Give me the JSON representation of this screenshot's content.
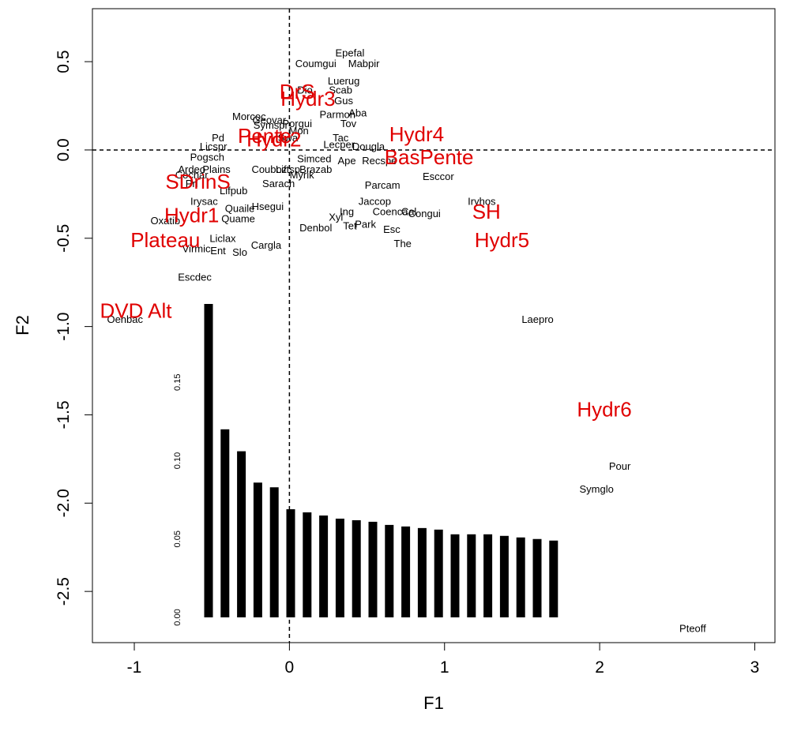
{
  "chart_data": [
    {
      "type": "scatter",
      "xlabel": "F1",
      "ylabel": "F2",
      "xlim": [
        -1.27,
        3.13
      ],
      "ylim": [
        -2.79,
        0.8
      ],
      "x_ticks": [
        -1,
        0,
        1,
        2,
        3
      ],
      "y_ticks": [
        0.5,
        0.0,
        -0.5,
        -1.0,
        -1.5,
        -2.0,
        -2.5
      ],
      "x_tick_labels": [
        "-1",
        "0",
        "1",
        "2",
        "3"
      ],
      "y_tick_labels": [
        "0.5",
        "0.0",
        "-0.5",
        "-1.0",
        "-1.5",
        "-2.0",
        "-2.5"
      ],
      "reference_lines": {
        "x": 0,
        "y": 0,
        "style": "dashed"
      },
      "species": [
        {
          "label": "Epefal",
          "x": 0.39,
          "y": 0.55
        },
        {
          "label": "Coumgui",
          "x": 0.17,
          "y": 0.49
        },
        {
          "label": "Mabpir",
          "x": 0.48,
          "y": 0.49
        },
        {
          "label": "Luerug",
          "x": 0.35,
          "y": 0.39
        },
        {
          "label": "Dio",
          "x": 0.1,
          "y": 0.34
        },
        {
          "label": "Scab",
          "x": 0.33,
          "y": 0.34
        },
        {
          "label": "Gus",
          "x": 0.35,
          "y": 0.28
        },
        {
          "label": "Aba",
          "x": 0.44,
          "y": 0.21
        },
        {
          "label": "Parmon",
          "x": 0.31,
          "y": 0.2
        },
        {
          "label": "Tov",
          "x": 0.38,
          "y": 0.15
        },
        {
          "label": "Morcoc",
          "x": -0.26,
          "y": 0.19
        },
        {
          "label": "Geovar",
          "x": -0.13,
          "y": 0.17
        },
        {
          "label": "Porgui",
          "x": 0.05,
          "y": 0.15
        },
        {
          "label": "Symspr",
          "x": -0.12,
          "y": 0.14
        },
        {
          "label": "Mon",
          "x": 0.06,
          "y": 0.11
        },
        {
          "label": "Swa",
          "x": -0.01,
          "y": 0.07
        },
        {
          "label": "Tac",
          "x": 0.33,
          "y": 0.07
        },
        {
          "label": "Lecper",
          "x": 0.32,
          "y": 0.03
        },
        {
          "label": "Dougla",
          "x": 0.51,
          "y": 0.02
        },
        {
          "label": "Pd",
          "x": -0.46,
          "y": 0.07
        },
        {
          "label": "Licspr",
          "x": -0.49,
          "y": 0.02
        },
        {
          "label": "Pogsch",
          "x": -0.53,
          "y": -0.04
        },
        {
          "label": "Simced",
          "x": 0.16,
          "y": -0.05
        },
        {
          "label": "Ape",
          "x": 0.37,
          "y": -0.06
        },
        {
          "label": "Recspe",
          "x": 0.58,
          "y": -0.06
        },
        {
          "label": "Ardeo",
          "x": -0.63,
          "y": -0.11
        },
        {
          "label": "Plains",
          "x": -0.47,
          "y": -0.11
        },
        {
          "label": "Couboz",
          "x": -0.13,
          "y": -0.11
        },
        {
          "label": "Liftsp",
          "x": -0.01,
          "y": -0.11
        },
        {
          "label": "Brazab",
          "x": 0.17,
          "y": -0.11
        },
        {
          "label": "Myrik",
          "x": 0.08,
          "y": -0.14
        },
        {
          "label": "Esccor",
          "x": 0.96,
          "y": -0.15
        },
        {
          "label": "Cochar",
          "x": -0.63,
          "y": -0.14
        },
        {
          "label": "Pri",
          "x": -0.63,
          "y": -0.19
        },
        {
          "label": "Sarach",
          "x": -0.07,
          "y": -0.19
        },
        {
          "label": "Parcam",
          "x": 0.6,
          "y": -0.2
        },
        {
          "label": "Lifpub",
          "x": -0.36,
          "y": -0.23
        },
        {
          "label": "Irysac",
          "x": -0.55,
          "y": -0.29
        },
        {
          "label": "Hsegui",
          "x": -0.14,
          "y": -0.32
        },
        {
          "label": "Quaile",
          "x": -0.32,
          "y": -0.33
        },
        {
          "label": "Jaccop",
          "x": 0.55,
          "y": -0.29
        },
        {
          "label": "Iryhos",
          "x": 1.24,
          "y": -0.29
        },
        {
          "label": "Ing",
          "x": 0.37,
          "y": -0.35
        },
        {
          "label": "Coenca",
          "x": 0.65,
          "y": -0.35
        },
        {
          "label": "Cal",
          "x": 0.77,
          "y": -0.35
        },
        {
          "label": "Congui",
          "x": 0.87,
          "y": -0.36
        },
        {
          "label": "Xyl",
          "x": 0.3,
          "y": -0.38
        },
        {
          "label": "Oxatib",
          "x": -0.8,
          "y": -0.4
        },
        {
          "label": "Quame",
          "x": -0.33,
          "y": -0.39
        },
        {
          "label": "Tet",
          "x": 0.39,
          "y": -0.43
        },
        {
          "label": "Park",
          "x": 0.49,
          "y": -0.42
        },
        {
          "label": "Denbol",
          "x": 0.17,
          "y": -0.44
        },
        {
          "label": "Esc",
          "x": 0.66,
          "y": -0.45
        },
        {
          "label": "Liclax",
          "x": -0.43,
          "y": -0.5
        },
        {
          "label": "The",
          "x": 0.73,
          "y": -0.53
        },
        {
          "label": "Cargla",
          "x": -0.15,
          "y": -0.54
        },
        {
          "label": "Virmic",
          "x": -0.6,
          "y": -0.56
        },
        {
          "label": "Ent",
          "x": -0.46,
          "y": -0.57
        },
        {
          "label": "Slo",
          "x": -0.32,
          "y": -0.58
        },
        {
          "label": "Escdec",
          "x": -0.61,
          "y": -0.72
        },
        {
          "label": "Oenbac",
          "x": -1.06,
          "y": -0.96
        },
        {
          "label": "Laepro",
          "x": 1.6,
          "y": -0.96
        },
        {
          "label": "Pour",
          "x": 2.13,
          "y": -1.79
        },
        {
          "label": "Symglo",
          "x": 1.98,
          "y": -1.92
        },
        {
          "label": "Pteoff",
          "x": 2.6,
          "y": -2.71
        }
      ],
      "variables": [
        {
          "label": "DrS",
          "x": 0.05,
          "y": 0.33
        },
        {
          "label": "Hydr3",
          "x": 0.12,
          "y": 0.29
        },
        {
          "label": "Hydr4",
          "x": 0.82,
          "y": 0.09
        },
        {
          "label": "Pente",
          "x": -0.16,
          "y": 0.08
        },
        {
          "label": "Hydr2",
          "x": -0.1,
          "y": 0.06
        },
        {
          "label": "BasPente",
          "x": 0.9,
          "y": -0.04
        },
        {
          "label": "SDrinS",
          "x": -0.59,
          "y": -0.18
        },
        {
          "label": "SH",
          "x": 1.27,
          "y": -0.35
        },
        {
          "label": "Hydr1",
          "x": -0.63,
          "y": -0.37
        },
        {
          "label": "Plateau",
          "x": -0.8,
          "y": -0.51
        },
        {
          "label": "Hydr5",
          "x": 1.37,
          "y": -0.51
        },
        {
          "label": "DVD Alt",
          "x": -0.99,
          "y": -0.91
        },
        {
          "label": "Hydr6",
          "x": 2.03,
          "y": -1.47
        }
      ]
    },
    {
      "type": "bar",
      "values": [
        0.2,
        0.12,
        0.106,
        0.086,
        0.083,
        0.069,
        0.067,
        0.065,
        0.063,
        0.062,
        0.061,
        0.059,
        0.058,
        0.057,
        0.056,
        0.053,
        0.053,
        0.053,
        0.052,
        0.051,
        0.05,
        0.049
      ],
      "ylim": [
        0,
        0.2
      ],
      "y_ticks": [
        0.0,
        0.05,
        0.1,
        0.15
      ],
      "y_tick_labels": [
        "0.00",
        "0.05",
        "0.10",
        "0.15"
      ],
      "bar_color": "#000000"
    }
  ]
}
